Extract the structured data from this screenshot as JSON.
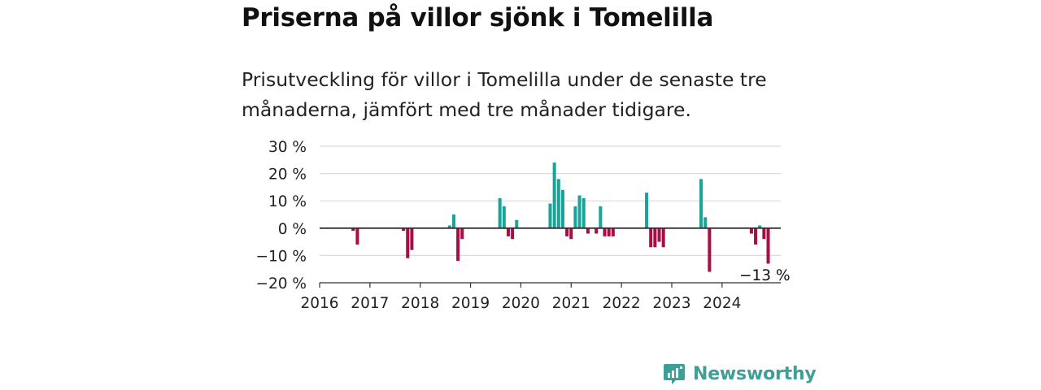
{
  "title": "Priserna på villor sjönk i Tomelilla",
  "subtitle": "Prisutveckling för villor i Tomelilla under de senaste tre månaderna, jämfört med tre månader tidigare.",
  "brand": {
    "name": "Newsworthy",
    "logo_icon": "newsworthy-logo-icon"
  },
  "colors": {
    "positive": "#18a499",
    "negative": "#a80e45",
    "grid": "#dcdcdc",
    "zero": "#333333"
  },
  "chart_data": {
    "type": "bar",
    "xlim": [
      "2016-01",
      "2025-03"
    ],
    "ylim": [
      -20,
      30
    ],
    "y_ticks": [
      30,
      20,
      10,
      0,
      -10,
      -20
    ],
    "y_tick_labels": [
      "30 %",
      "20 %",
      "10 %",
      "0 %",
      "−10 %",
      "−20 %"
    ],
    "x_ticks": [
      "2016-01",
      "2017-01",
      "2018-01",
      "2019-01",
      "2020-01",
      "2021-01",
      "2022-01",
      "2023-01",
      "2024-01"
    ],
    "x_tick_labels": [
      "2016",
      "2017",
      "2018",
      "2019",
      "2020",
      "2021",
      "2022",
      "2023",
      "2024"
    ],
    "grid": true,
    "annotation": {
      "text": "−13 %",
      "x": "2024-12"
    },
    "x": [
      "2016-09",
      "2016-10",
      "2017-09",
      "2017-10",
      "2017-11",
      "2018-08",
      "2018-09",
      "2018-10",
      "2018-11",
      "2019-08",
      "2019-09",
      "2019-10",
      "2019-11",
      "2019-12",
      "2020-08",
      "2020-09",
      "2020-10",
      "2020-11",
      "2020-12",
      "2021-01",
      "2021-02",
      "2021-03",
      "2021-04",
      "2021-05",
      "2021-07",
      "2021-08",
      "2021-09",
      "2021-10",
      "2021-11",
      "2022-07",
      "2022-08",
      "2022-09",
      "2022-10",
      "2022-11",
      "2023-08",
      "2023-09",
      "2023-10",
      "2024-08",
      "2024-09",
      "2024-10",
      "2024-11",
      "2024-12"
    ],
    "values": [
      -1,
      -6,
      -1,
      -11,
      -8,
      1,
      5,
      -12,
      -4,
      11,
      8,
      -3,
      -4,
      3,
      9,
      24,
      18,
      14,
      -3,
      -4,
      8,
      12,
      11,
      -2,
      -2,
      8,
      -3,
      -3,
      -3,
      13,
      -7,
      -7,
      -5,
      -7,
      18,
      4,
      -16,
      -2,
      -6,
      1,
      -4,
      -13
    ]
  }
}
